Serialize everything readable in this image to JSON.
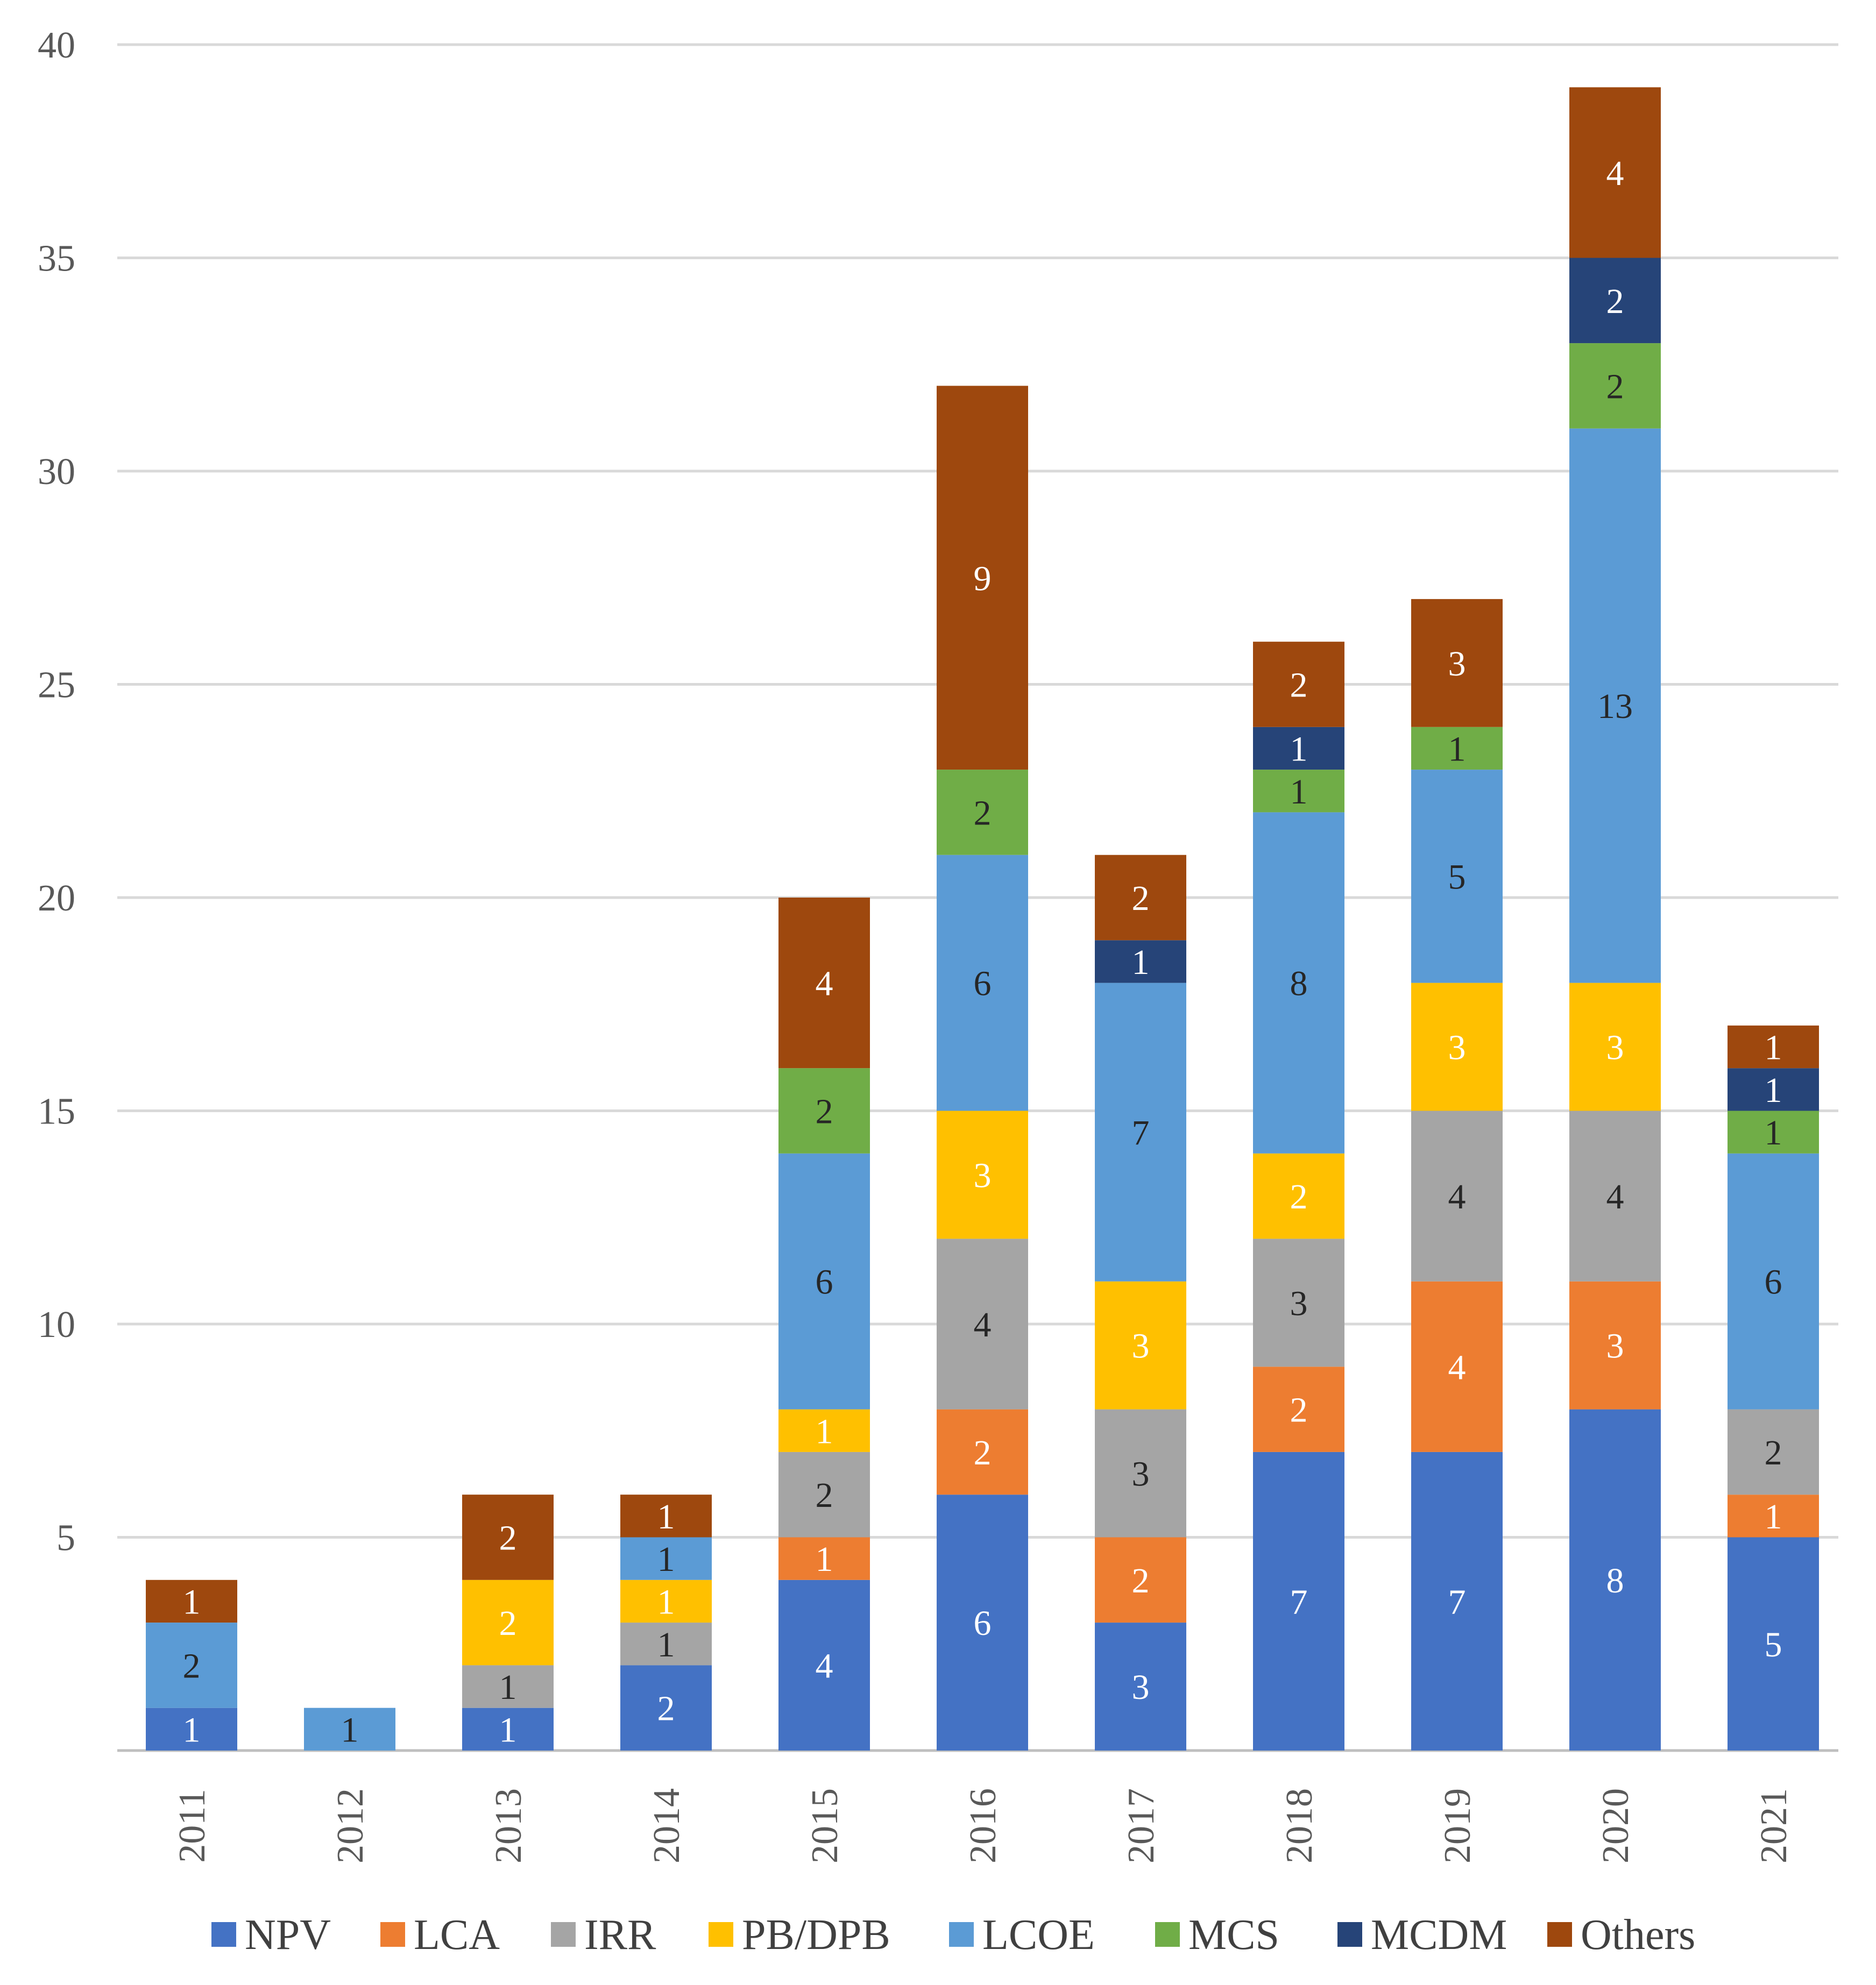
{
  "chart_data": {
    "type": "bar",
    "stacked": true,
    "title": "",
    "xlabel": "",
    "ylabel": "",
    "ylim": [
      0,
      40
    ],
    "y_ticks": [
      "5",
      "10",
      "15",
      "20",
      "25",
      "30",
      "35",
      "40"
    ],
    "categories": [
      "2011",
      "2012",
      "2013",
      "2014",
      "2015",
      "2016",
      "2017",
      "2018",
      "2019",
      "2020",
      "2021"
    ],
    "legend_position": "bottom",
    "series": [
      {
        "name": "NPV",
        "color": "#4472C4",
        "label_color": "#ffffff",
        "values": [
          1,
          0,
          1,
          2,
          4,
          6,
          3,
          7,
          7,
          8,
          5
        ]
      },
      {
        "name": "LCA",
        "color": "#ED7D31",
        "label_color": "#ffffff",
        "values": [
          0,
          0,
          0,
          0,
          1,
          2,
          2,
          2,
          4,
          3,
          1
        ]
      },
      {
        "name": "IRR",
        "color": "#A5A5A5",
        "label_color": "#262626",
        "values": [
          0,
          0,
          1,
          1,
          2,
          4,
          3,
          3,
          4,
          4,
          2
        ]
      },
      {
        "name": "PB/DPB",
        "color": "#FFC000",
        "label_color": "#ffffff",
        "values": [
          0,
          0,
          2,
          1,
          1,
          3,
          3,
          2,
          3,
          3,
          0
        ]
      },
      {
        "name": "LCOE",
        "color": "#5B9BD5",
        "label_color": "#262626",
        "values": [
          2,
          1,
          0,
          1,
          6,
          6,
          7,
          8,
          5,
          13,
          6
        ]
      },
      {
        "name": "MCS",
        "color": "#70AD47",
        "label_color": "#262626",
        "values": [
          0,
          0,
          0,
          0,
          2,
          2,
          0,
          1,
          1,
          2,
          1
        ]
      },
      {
        "name": "MCDM",
        "color": "#264478",
        "label_color": "#ffffff",
        "values": [
          0,
          0,
          0,
          0,
          0,
          0,
          1,
          1,
          0,
          2,
          1
        ]
      },
      {
        "name": "Others",
        "color": "#9E480E",
        "label_color": "#ffffff",
        "values": [
          1,
          0,
          2,
          1,
          4,
          9,
          2,
          2,
          3,
          4,
          1
        ]
      }
    ]
  }
}
